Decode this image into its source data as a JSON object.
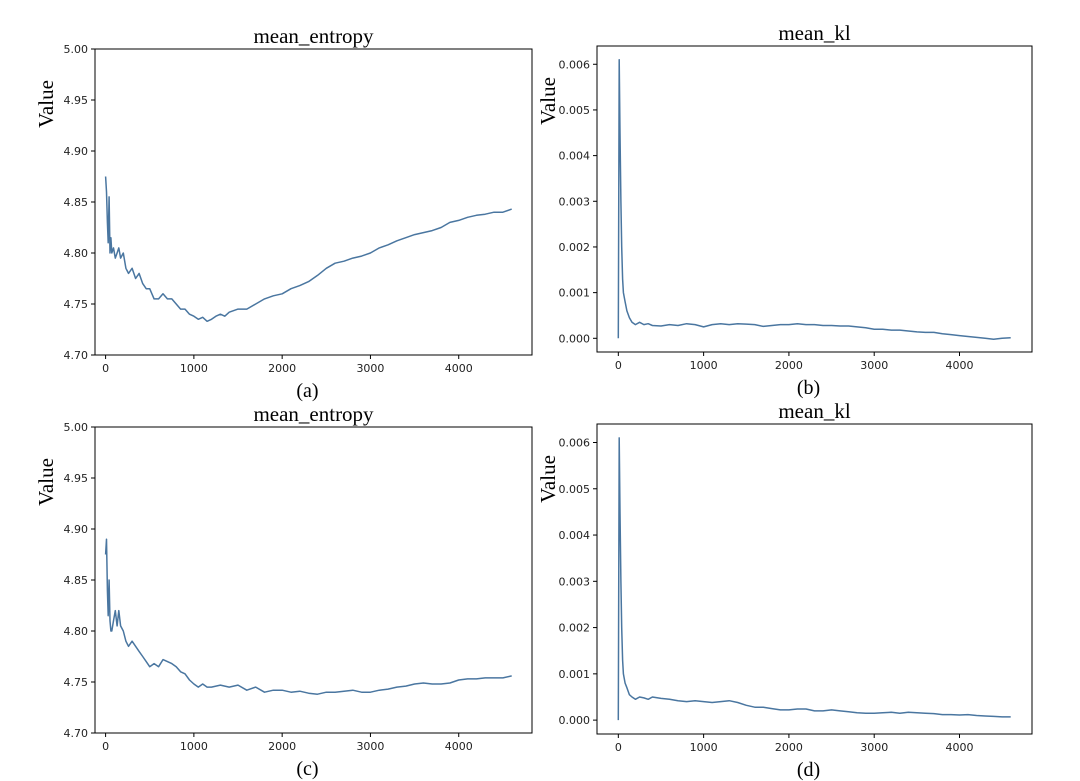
{
  "chart_data": [
    {
      "id": "a",
      "type": "line",
      "title": "mean_entropy",
      "ylabel": "Value",
      "caption": "(a)",
      "xlim": [
        -120,
        4830
      ],
      "ylim": [
        4.7,
        5.0
      ],
      "xticks": [
        0,
        1000,
        2000,
        3000,
        4000
      ],
      "xtick_labels": [
        "0",
        "1000",
        "2000",
        "3000",
        "4000"
      ],
      "yticks": [
        4.7,
        4.75,
        4.8,
        4.85,
        4.9,
        4.95,
        5.0
      ],
      "ytick_labels": [
        "4.70",
        "4.75",
        "4.80",
        "4.85",
        "4.90",
        "4.95",
        "5.00"
      ],
      "color": "#4a76a0",
      "series": [
        {
          "x": [
            0,
            10,
            20,
            30,
            40,
            50,
            60,
            70,
            90,
            110,
            130,
            150,
            170,
            200,
            230,
            260,
            300,
            340,
            380,
            420,
            460,
            500,
            550,
            600,
            650,
            700,
            750,
            800,
            850,
            900,
            950,
            1000,
            1050,
            1100,
            1150,
            1200,
            1250,
            1300,
            1350,
            1400,
            1500,
            1600,
            1700,
            1800,
            1900,
            2000,
            2100,
            2200,
            2300,
            2400,
            2500,
            2600,
            2700,
            2800,
            2900,
            3000,
            3100,
            3200,
            3300,
            3400,
            3500,
            3600,
            3700,
            3800,
            3900,
            4000,
            4100,
            4200,
            4300,
            4400,
            4500,
            4600
          ],
          "y": [
            4.875,
            4.86,
            4.83,
            4.81,
            4.855,
            4.8,
            4.815,
            4.8,
            4.805,
            4.795,
            4.8,
            4.805,
            4.795,
            4.8,
            4.785,
            4.78,
            4.785,
            4.775,
            4.78,
            4.77,
            4.765,
            4.765,
            4.755,
            4.755,
            4.76,
            4.755,
            4.755,
            4.75,
            4.745,
            4.745,
            4.74,
            4.738,
            4.735,
            4.737,
            4.733,
            4.735,
            4.738,
            4.74,
            4.738,
            4.742,
            4.745,
            4.745,
            4.75,
            4.755,
            4.758,
            4.76,
            4.765,
            4.768,
            4.772,
            4.778,
            4.785,
            4.79,
            4.792,
            4.795,
            4.797,
            4.8,
            4.805,
            4.808,
            4.812,
            4.815,
            4.818,
            4.82,
            4.822,
            4.825,
            4.83,
            4.832,
            4.835,
            4.837,
            4.838,
            4.84,
            4.84,
            4.843
          ]
        }
      ]
    },
    {
      "id": "b",
      "type": "line",
      "title": "mean_kl",
      "ylabel": "Value",
      "caption": "(b)",
      "xlim": [
        -250,
        4850
      ],
      "ylim": [
        -0.0003,
        0.0064
      ],
      "xticks": [
        0,
        1000,
        2000,
        3000,
        4000
      ],
      "xtick_labels": [
        "0",
        "1000",
        "2000",
        "3000",
        "4000"
      ],
      "yticks": [
        0.0,
        0.001,
        0.002,
        0.003,
        0.004,
        0.005,
        0.006
      ],
      "ytick_labels": [
        "0.000",
        "0.001",
        "0.002",
        "0.003",
        "0.004",
        "0.005",
        "0.006"
      ],
      "color": "#4a76a0",
      "series": [
        {
          "x": [
            0,
            10,
            20,
            30,
            40,
            50,
            60,
            80,
            100,
            130,
            160,
            200,
            250,
            300,
            350,
            400,
            500,
            600,
            700,
            800,
            900,
            1000,
            1100,
            1200,
            1300,
            1400,
            1500,
            1600,
            1700,
            1800,
            1900,
            2000,
            2100,
            2200,
            2300,
            2400,
            2500,
            2600,
            2700,
            2800,
            2900,
            3000,
            3100,
            3200,
            3300,
            3400,
            3500,
            3600,
            3700,
            3800,
            3900,
            4000,
            4100,
            4200,
            4300,
            4400,
            4500,
            4600
          ],
          "y": [
            0.0,
            0.0061,
            0.0045,
            0.003,
            0.002,
            0.0013,
            0.001,
            0.0008,
            0.0006,
            0.00045,
            0.00035,
            0.0003,
            0.00035,
            0.0003,
            0.00032,
            0.00028,
            0.00027,
            0.0003,
            0.00028,
            0.00032,
            0.0003,
            0.00025,
            0.0003,
            0.00032,
            0.0003,
            0.00032,
            0.00031,
            0.0003,
            0.00026,
            0.00028,
            0.0003,
            0.0003,
            0.00032,
            0.0003,
            0.0003,
            0.00028,
            0.00028,
            0.00027,
            0.00027,
            0.00025,
            0.00023,
            0.0002,
            0.0002,
            0.00018,
            0.00018,
            0.00016,
            0.00014,
            0.00013,
            0.00013,
            0.0001,
            8e-05,
            6e-05,
            4e-05,
            2e-05,
            0.0,
            -2e-05,
            0.0,
            1e-05
          ]
        }
      ]
    },
    {
      "id": "c",
      "type": "line",
      "title": "mean_entropy",
      "ylabel": "Value",
      "caption": "(c)",
      "xlim": [
        -120,
        4830
      ],
      "ylim": [
        4.7,
        5.0
      ],
      "xticks": [
        0,
        1000,
        2000,
        3000,
        4000
      ],
      "xtick_labels": [
        "0",
        "1000",
        "2000",
        "3000",
        "4000"
      ],
      "yticks": [
        4.7,
        4.75,
        4.8,
        4.85,
        4.9,
        4.95,
        5.0
      ],
      "ytick_labels": [
        "4.70",
        "4.75",
        "4.80",
        "4.85",
        "4.90",
        "4.95",
        "5.00"
      ],
      "color": "#4a76a0",
      "series": [
        {
          "x": [
            0,
            10,
            20,
            30,
            40,
            50,
            60,
            70,
            90,
            110,
            130,
            150,
            170,
            200,
            230,
            260,
            300,
            340,
            380,
            420,
            460,
            500,
            550,
            600,
            650,
            700,
            750,
            800,
            850,
            900,
            950,
            1000,
            1050,
            1100,
            1150,
            1200,
            1300,
            1400,
            1500,
            1600,
            1700,
            1800,
            1900,
            2000,
            2100,
            2200,
            2300,
            2400,
            2500,
            2600,
            2700,
            2800,
            2900,
            3000,
            3100,
            3200,
            3300,
            3400,
            3500,
            3600,
            3700,
            3800,
            3900,
            4000,
            4100,
            4200,
            4300,
            4400,
            4500,
            4600
          ],
          "y": [
            4.875,
            4.89,
            4.84,
            4.815,
            4.85,
            4.81,
            4.8,
            4.8,
            4.81,
            4.82,
            4.805,
            4.82,
            4.805,
            4.8,
            4.79,
            4.785,
            4.79,
            4.785,
            4.78,
            4.775,
            4.77,
            4.765,
            4.768,
            4.765,
            4.772,
            4.77,
            4.768,
            4.765,
            4.76,
            4.758,
            4.752,
            4.748,
            4.745,
            4.748,
            4.745,
            4.745,
            4.747,
            4.745,
            4.747,
            4.742,
            4.745,
            4.74,
            4.742,
            4.742,
            4.74,
            4.741,
            4.739,
            4.738,
            4.74,
            4.74,
            4.741,
            4.742,
            4.74,
            4.74,
            4.742,
            4.743,
            4.745,
            4.746,
            4.748,
            4.749,
            4.748,
            4.748,
            4.749,
            4.752,
            4.753,
            4.753,
            4.754,
            4.754,
            4.754,
            4.756
          ]
        }
      ]
    },
    {
      "id": "d",
      "type": "line",
      "title": "mean_kl",
      "ylabel": "Value",
      "caption": "(d)",
      "xlim": [
        -250,
        4850
      ],
      "ylim": [
        -0.0003,
        0.0064
      ],
      "xticks": [
        0,
        1000,
        2000,
        3000,
        4000
      ],
      "xtick_labels": [
        "0",
        "1000",
        "2000",
        "3000",
        "4000"
      ],
      "yticks": [
        0.0,
        0.001,
        0.002,
        0.003,
        0.004,
        0.005,
        0.006
      ],
      "ytick_labels": [
        "0.000",
        "0.001",
        "0.002",
        "0.003",
        "0.004",
        "0.005",
        "0.006"
      ],
      "color": "#4a76a0",
      "series": [
        {
          "x": [
            0,
            10,
            20,
            30,
            40,
            50,
            60,
            80,
            100,
            130,
            160,
            200,
            250,
            300,
            350,
            400,
            500,
            600,
            700,
            800,
            900,
            1000,
            1100,
            1200,
            1300,
            1400,
            1500,
            1600,
            1700,
            1800,
            1900,
            2000,
            2100,
            2200,
            2300,
            2400,
            2500,
            2600,
            2700,
            2800,
            2900,
            3000,
            3100,
            3200,
            3300,
            3400,
            3500,
            3600,
            3700,
            3800,
            3900,
            4000,
            4100,
            4200,
            4300,
            4400,
            4500,
            4600
          ],
          "y": [
            0.0,
            0.0061,
            0.0045,
            0.003,
            0.002,
            0.0013,
            0.001,
            0.0008,
            0.0007,
            0.00055,
            0.0005,
            0.00045,
            0.0005,
            0.00048,
            0.00045,
            0.0005,
            0.00047,
            0.00045,
            0.00042,
            0.0004,
            0.00042,
            0.0004,
            0.00038,
            0.0004,
            0.00042,
            0.00038,
            0.00032,
            0.00028,
            0.00028,
            0.00025,
            0.00022,
            0.00022,
            0.00024,
            0.00024,
            0.0002,
            0.0002,
            0.00022,
            0.0002,
            0.00018,
            0.00016,
            0.00015,
            0.00015,
            0.00016,
            0.00017,
            0.00015,
            0.00017,
            0.00016,
            0.00015,
            0.00014,
            0.00012,
            0.00012,
            0.00011,
            0.00012,
            0.0001,
            9e-05,
            8e-05,
            7e-05,
            7e-05
          ]
        }
      ]
    }
  ]
}
